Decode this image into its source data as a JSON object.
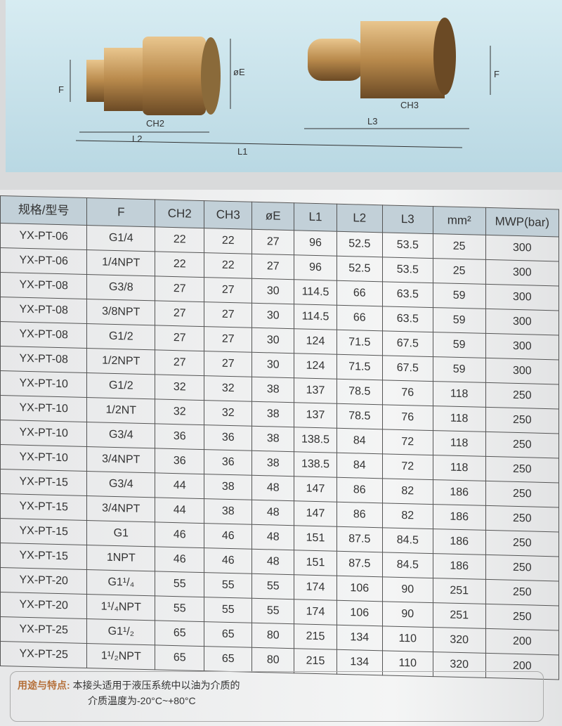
{
  "diagram": {
    "labels": {
      "f_left": "F",
      "oe": "øE",
      "ch2": "CH2",
      "l2": "L2",
      "l1": "L1",
      "ch3": "CH3",
      "l3": "L3",
      "f_right": "F"
    }
  },
  "table": {
    "headers": [
      "规格/型号",
      "F",
      "CH2",
      "CH3",
      "øE",
      "L1",
      "L2",
      "L3",
      "mm²",
      "MWP(bar)"
    ],
    "rows": [
      [
        "YX-PT-06",
        "G1/4",
        "22",
        "22",
        "27",
        "96",
        "52.5",
        "53.5",
        "25",
        "300"
      ],
      [
        "YX-PT-06",
        "1/4NPT",
        "22",
        "22",
        "27",
        "96",
        "52.5",
        "53.5",
        "25",
        "300"
      ],
      [
        "YX-PT-08",
        "G3/8",
        "27",
        "27",
        "30",
        "114.5",
        "66",
        "63.5",
        "59",
        "300"
      ],
      [
        "YX-PT-08",
        "3/8NPT",
        "27",
        "27",
        "30",
        "114.5",
        "66",
        "63.5",
        "59",
        "300"
      ],
      [
        "YX-PT-08",
        "G1/2",
        "27",
        "27",
        "30",
        "124",
        "71.5",
        "67.5",
        "59",
        "300"
      ],
      [
        "YX-PT-08",
        "1/2NPT",
        "27",
        "27",
        "30",
        "124",
        "71.5",
        "67.5",
        "59",
        "300"
      ],
      [
        "YX-PT-10",
        "G1/2",
        "32",
        "32",
        "38",
        "137",
        "78.5",
        "76",
        "118",
        "250"
      ],
      [
        "YX-PT-10",
        "1/2NT",
        "32",
        "32",
        "38",
        "137",
        "78.5",
        "76",
        "118",
        "250"
      ],
      [
        "YX-PT-10",
        "G3/4",
        "36",
        "36",
        "38",
        "138.5",
        "84",
        "72",
        "118",
        "250"
      ],
      [
        "YX-PT-10",
        "3/4NPT",
        "36",
        "36",
        "38",
        "138.5",
        "84",
        "72",
        "118",
        "250"
      ],
      [
        "YX-PT-15",
        "G3/4",
        "44",
        "38",
        "48",
        "147",
        "86",
        "82",
        "186",
        "250"
      ],
      [
        "YX-PT-15",
        "3/4NPT",
        "44",
        "38",
        "48",
        "147",
        "86",
        "82",
        "186",
        "250"
      ],
      [
        "YX-PT-15",
        "G1",
        "46",
        "46",
        "48",
        "151",
        "87.5",
        "84.5",
        "186",
        "250"
      ],
      [
        "YX-PT-15",
        "1NPT",
        "46",
        "46",
        "48",
        "151",
        "87.5",
        "84.5",
        "186",
        "250"
      ],
      [
        "YX-PT-20",
        "G1¹/₄",
        "55",
        "55",
        "55",
        "174",
        "106",
        "90",
        "251",
        "250"
      ],
      [
        "YX-PT-20",
        "1¹/₄NPT",
        "55",
        "55",
        "55",
        "174",
        "106",
        "90",
        "251",
        "250"
      ],
      [
        "YX-PT-25",
        "G1¹/₂",
        "65",
        "65",
        "80",
        "215",
        "134",
        "110",
        "320",
        "200"
      ],
      [
        "YX-PT-25",
        "1¹/₂NPT",
        "65",
        "65",
        "80",
        "215",
        "134",
        "110",
        "320",
        "200"
      ]
    ]
  },
  "note": {
    "heading": "用途与特点:",
    "line1": "本接头适用于液压系统中以油为介质的",
    "line2": "介质温度为-20°C~+80°C"
  }
}
